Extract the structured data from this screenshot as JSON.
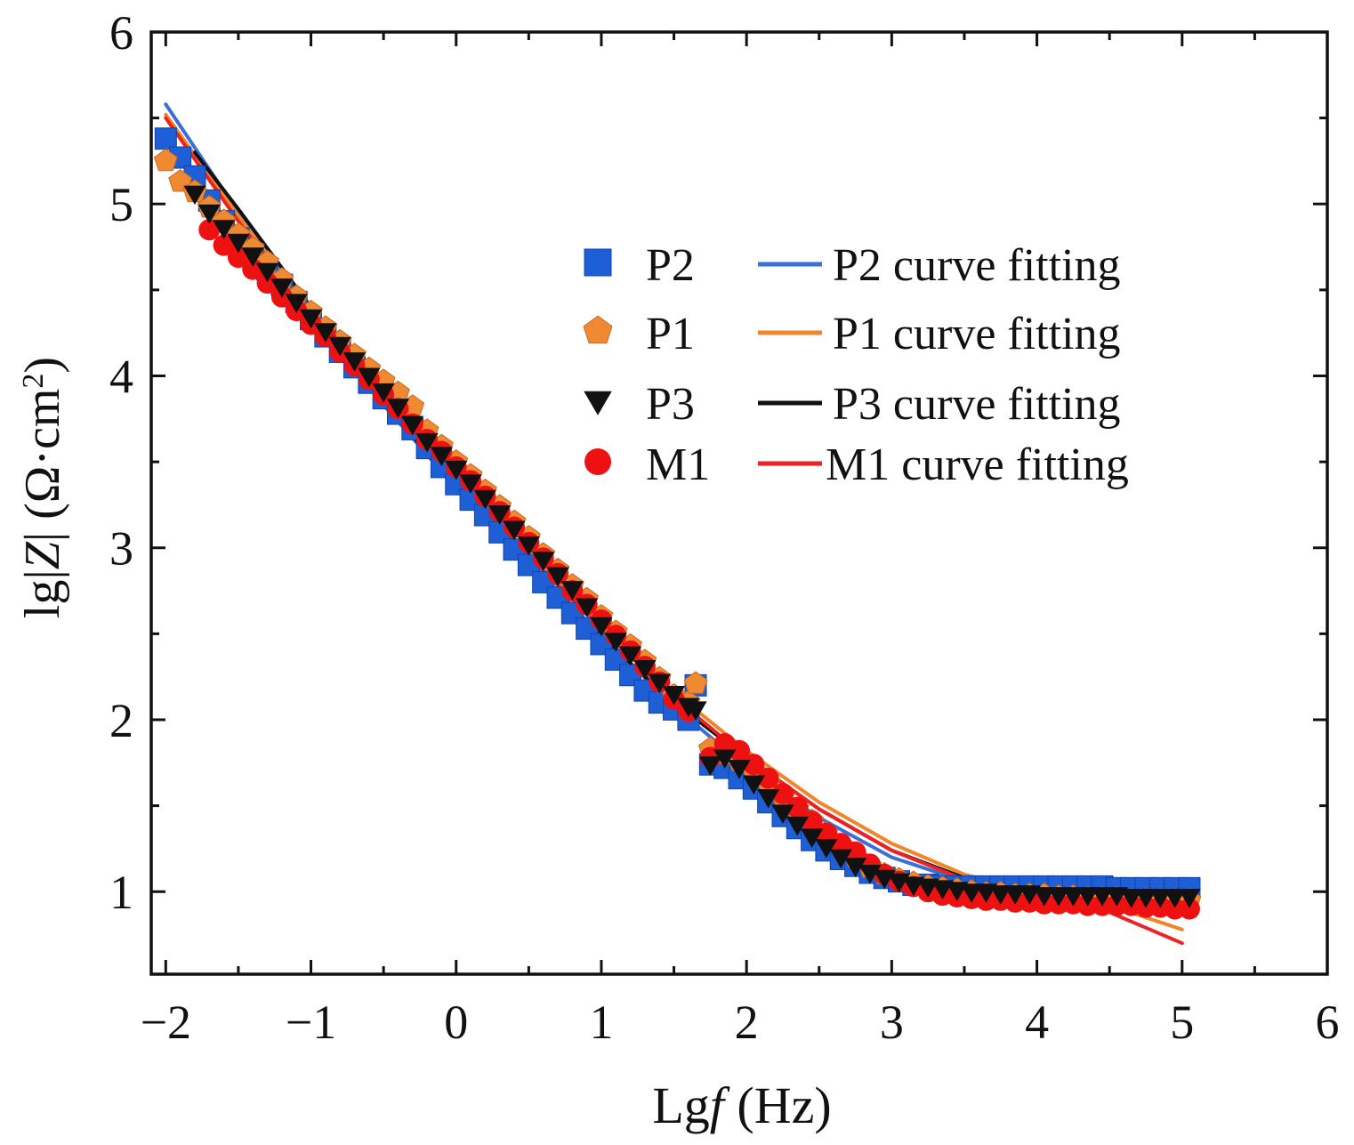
{
  "chart_data": {
    "type": "scatter",
    "xlabel": "Lgf (Hz)",
    "xlabel_parts": {
      "main": "Lg",
      "italic": "f",
      "unit": " (Hz)"
    },
    "ylabel": "lg|Z| (Ω·cm2)",
    "ylabel_parts": {
      "pre": "lg|",
      "italic": "Z",
      "mid": "| (Ω·cm",
      "sup": "2",
      "post": ")"
    },
    "xlim": [
      -2.1,
      6
    ],
    "ylim": [
      0.52,
      6
    ],
    "xticks": [
      -2,
      -1,
      0,
      1,
      2,
      3,
      4,
      5,
      6
    ],
    "xtick_labels": [
      "−2",
      "−1",
      "0",
      "1",
      "2",
      "3",
      "4",
      "5",
      "6"
    ],
    "yticks": [
      1,
      2,
      3,
      4,
      5,
      6
    ],
    "ytick_labels": [
      "1",
      "2",
      "3",
      "4",
      "5",
      "6"
    ],
    "grid": false,
    "legend_position": "upper-right",
    "series": [
      {
        "name": "P2",
        "marker": "square",
        "color": "#1f5fd6",
        "x": [
          -2.0,
          -1.9,
          -1.8,
          -1.7,
          -1.6,
          -1.5,
          -1.4,
          -1.3,
          -1.2,
          -1.1,
          -1.0,
          -0.9,
          -0.8,
          -0.7,
          -0.6,
          -0.5,
          -0.4,
          -0.3,
          -0.2,
          -0.1,
          0.0,
          0.1,
          0.2,
          0.3,
          0.4,
          0.5,
          0.6,
          0.7,
          0.8,
          0.9,
          1.0,
          1.1,
          1.2,
          1.3,
          1.4,
          1.5,
          1.6,
          1.65,
          1.75,
          1.85,
          1.95,
          2.05,
          2.15,
          2.25,
          2.35,
          2.45,
          2.55,
          2.65,
          2.75,
          2.85,
          2.95,
          3.05,
          3.15,
          3.25,
          3.35,
          3.45,
          3.55,
          3.65,
          3.75,
          3.85,
          3.95,
          4.05,
          4.15,
          4.25,
          4.35,
          4.45,
          4.55,
          4.65,
          4.75,
          4.85,
          4.95,
          5.05
        ],
        "y": [
          5.38,
          5.27,
          5.16,
          5.02,
          4.9,
          4.8,
          4.71,
          4.62,
          4.53,
          4.43,
          4.33,
          4.23,
          4.14,
          4.05,
          3.96,
          3.87,
          3.78,
          3.69,
          3.58,
          3.47,
          3.37,
          3.28,
          3.19,
          3.09,
          2.99,
          2.9,
          2.8,
          2.71,
          2.62,
          2.53,
          2.44,
          2.35,
          2.26,
          2.17,
          2.1,
          2.06,
          2.0,
          2.2,
          1.74,
          1.72,
          1.66,
          1.6,
          1.52,
          1.44,
          1.37,
          1.3,
          1.24,
          1.19,
          1.15,
          1.11,
          1.08,
          1.06,
          1.04,
          1.04,
          1.03,
          1.03,
          1.03,
          1.03,
          1.03,
          1.03,
          1.03,
          1.03,
          1.03,
          1.03,
          1.03,
          1.03,
          1.02,
          1.02,
          1.02,
          1.02,
          1.02,
          1.02
        ]
      },
      {
        "name": "P1",
        "marker": "pentagon",
        "color": "#f08a32",
        "x": [
          -2.0,
          -1.9,
          -1.8,
          -1.7,
          -1.6,
          -1.5,
          -1.4,
          -1.3,
          -1.2,
          -1.1,
          -1.0,
          -0.9,
          -0.8,
          -0.7,
          -0.6,
          -0.5,
          -0.4,
          -0.3,
          -0.2,
          -0.1,
          0.0,
          0.1,
          0.2,
          0.3,
          0.4,
          0.5,
          0.6,
          0.7,
          0.8,
          0.9,
          1.0,
          1.1,
          1.2,
          1.3,
          1.4,
          1.5,
          1.6,
          1.65,
          1.75,
          1.85,
          1.95,
          2.05,
          2.15,
          2.25,
          2.35,
          2.45,
          2.55,
          2.65,
          2.75,
          2.85,
          2.95,
          3.05,
          3.15,
          3.25,
          3.35,
          3.45,
          3.55,
          3.65,
          3.75,
          3.85,
          3.95,
          4.05,
          4.15,
          4.25,
          4.35,
          4.45,
          4.55,
          4.65,
          4.75,
          4.85,
          4.95,
          5.05
        ],
        "y": [
          5.25,
          5.13,
          5.07,
          4.98,
          4.9,
          4.82,
          4.74,
          4.66,
          4.56,
          4.46,
          4.37,
          4.28,
          4.2,
          4.12,
          4.04,
          3.97,
          3.9,
          3.82,
          3.68,
          3.59,
          3.5,
          3.42,
          3.33,
          3.24,
          3.15,
          3.06,
          2.96,
          2.87,
          2.78,
          2.7,
          2.6,
          2.51,
          2.43,
          2.34,
          2.24,
          2.14,
          2.1,
          2.21,
          1.83,
          1.8,
          1.76,
          1.7,
          1.63,
          1.55,
          1.48,
          1.41,
          1.34,
          1.27,
          1.2,
          1.14,
          1.1,
          1.07,
          1.05,
          1.03,
          1.02,
          1.01,
          1.0,
          0.99,
          0.99,
          0.98,
          0.98,
          0.98,
          0.97,
          0.97,
          0.96,
          0.96,
          0.96,
          0.95,
          0.95,
          0.95,
          0.95,
          0.95
        ]
      },
      {
        "name": "P3",
        "marker": "triangle-down",
        "color": "#111111",
        "x": [
          -1.8,
          -1.7,
          -1.6,
          -1.5,
          -1.4,
          -1.3,
          -1.2,
          -1.1,
          -1.0,
          -0.9,
          -0.8,
          -0.7,
          -0.6,
          -0.5,
          -0.4,
          -0.3,
          -0.2,
          -0.1,
          0.0,
          0.1,
          0.2,
          0.3,
          0.4,
          0.5,
          0.6,
          0.7,
          0.8,
          0.9,
          1.0,
          1.1,
          1.2,
          1.3,
          1.4,
          1.5,
          1.6,
          1.65,
          1.75,
          1.85,
          1.95,
          2.05,
          2.15,
          2.25,
          2.35,
          2.45,
          2.55,
          2.65,
          2.75,
          2.85,
          2.95,
          3.05,
          3.15,
          3.25,
          3.35,
          3.45,
          3.55,
          3.65,
          3.75,
          3.85,
          3.95,
          4.05,
          4.15,
          4.25,
          4.35,
          4.45,
          4.55,
          4.65,
          4.75,
          4.85,
          4.95,
          5.05
        ],
        "y": [
          5.06,
          4.95,
          4.86,
          4.78,
          4.7,
          4.61,
          4.52,
          4.43,
          4.34,
          4.26,
          4.18,
          4.09,
          4.0,
          3.91,
          3.82,
          3.72,
          3.62,
          3.54,
          3.46,
          3.38,
          3.29,
          3.2,
          3.11,
          3.02,
          2.93,
          2.84,
          2.76,
          2.66,
          2.55,
          2.46,
          2.38,
          2.3,
          2.22,
          2.15,
          2.08,
          2.06,
          1.74,
          1.78,
          1.72,
          1.63,
          1.55,
          1.46,
          1.39,
          1.32,
          1.26,
          1.2,
          1.15,
          1.11,
          1.08,
          1.06,
          1.04,
          1.03,
          1.02,
          1.01,
          1.0,
          1.0,
          0.99,
          0.99,
          0.99,
          0.98,
          0.98,
          0.98,
          0.98,
          0.98,
          0.98,
          0.97,
          0.97,
          0.97,
          0.97,
          0.97
        ]
      },
      {
        "name": "M1",
        "marker": "circle",
        "color": "#ee1111",
        "x": [
          -1.7,
          -1.6,
          -1.5,
          -1.4,
          -1.3,
          -1.2,
          -1.1,
          -1.0,
          -0.9,
          -0.8,
          -0.7,
          -0.6,
          -0.5,
          -0.4,
          -0.3,
          -0.2,
          -0.1,
          0.0,
          0.1,
          0.2,
          0.3,
          0.4,
          0.5,
          0.6,
          0.7,
          0.8,
          0.9,
          1.0,
          1.1,
          1.2,
          1.3,
          1.4,
          1.5,
          1.6,
          1.75,
          1.85,
          1.95,
          2.05,
          2.15,
          2.25,
          2.35,
          2.45,
          2.55,
          2.65,
          2.75,
          2.85,
          2.95,
          3.05,
          3.15,
          3.25,
          3.35,
          3.45,
          3.55,
          3.65,
          3.75,
          3.85,
          3.95,
          4.05,
          4.15,
          4.25,
          4.35,
          4.45,
          4.55,
          4.65,
          4.75,
          4.85,
          4.95,
          5.05
        ],
        "y": [
          4.85,
          4.76,
          4.69,
          4.62,
          4.54,
          4.46,
          4.38,
          4.3,
          4.23,
          4.14,
          4.06,
          3.98,
          3.89,
          3.81,
          3.72,
          3.63,
          3.56,
          3.47,
          3.39,
          3.3,
          3.21,
          3.12,
          3.03,
          2.94,
          2.85,
          2.75,
          2.67,
          2.58,
          2.49,
          2.4,
          2.31,
          2.22,
          2.12,
          2.05,
          1.78,
          1.86,
          1.82,
          1.74,
          1.66,
          1.57,
          1.49,
          1.41,
          1.34,
          1.28,
          1.23,
          1.16,
          1.1,
          1.06,
          1.03,
          1.0,
          0.98,
          0.97,
          0.96,
          0.95,
          0.95,
          0.94,
          0.94,
          0.93,
          0.93,
          0.93,
          0.92,
          0.92,
          0.92,
          0.92,
          0.91,
          0.91,
          0.9,
          0.9
        ]
      },
      {
        "name": "P2 curve fitting",
        "style": "line",
        "color": "#3a6fd8",
        "x": [
          -2.0,
          -1.5,
          -1.0,
          -0.5,
          0.0,
          0.5,
          1.0,
          1.5,
          2.0,
          2.5,
          3.0,
          3.5,
          4.0,
          4.5,
          5.0
        ],
        "y": [
          5.58,
          4.95,
          4.39,
          3.83,
          3.35,
          2.92,
          2.49,
          2.08,
          1.72,
          1.43,
          1.2,
          1.06,
          1.02,
          0.99,
          0.93
        ]
      },
      {
        "name": "P1 curve fitting",
        "style": "line",
        "color": "#f0862a",
        "x": [
          -2.0,
          -1.5,
          -1.0,
          -0.5,
          0.0,
          0.5,
          1.0,
          1.5,
          2.0,
          2.5,
          3.0,
          3.5,
          4.0,
          4.5,
          5.0
        ],
        "y": [
          5.52,
          4.93,
          4.38,
          3.87,
          3.4,
          2.97,
          2.55,
          2.16,
          1.82,
          1.52,
          1.28,
          1.1,
          1.0,
          0.92,
          0.78
        ]
      },
      {
        "name": "P3 curve fitting",
        "style": "line",
        "color": "#111111",
        "x": [
          -1.8,
          -1.5,
          -1.0,
          -0.5,
          0.0,
          0.5,
          1.0,
          1.5,
          2.0,
          2.5,
          3.0,
          3.5,
          4.0,
          4.5,
          5.0
        ],
        "y": [
          5.3,
          4.97,
          4.4,
          3.86,
          3.34,
          2.9,
          2.48,
          2.1,
          1.78,
          1.48,
          1.24,
          1.08,
          1.0,
          0.95,
          0.88
        ]
      },
      {
        "name": "M1 curve fitting",
        "style": "line",
        "color": "#ee2222",
        "x": [
          -2.0,
          -1.5,
          -1.0,
          -0.5,
          0.0,
          0.5,
          1.0,
          1.5,
          2.0,
          2.5,
          3.0,
          3.5,
          4.0,
          4.5,
          5.0
        ],
        "y": [
          5.5,
          4.9,
          4.35,
          3.85,
          3.38,
          2.95,
          2.53,
          2.13,
          1.78,
          1.48,
          1.24,
          1.07,
          0.98,
          0.88,
          0.7
        ]
      }
    ]
  }
}
